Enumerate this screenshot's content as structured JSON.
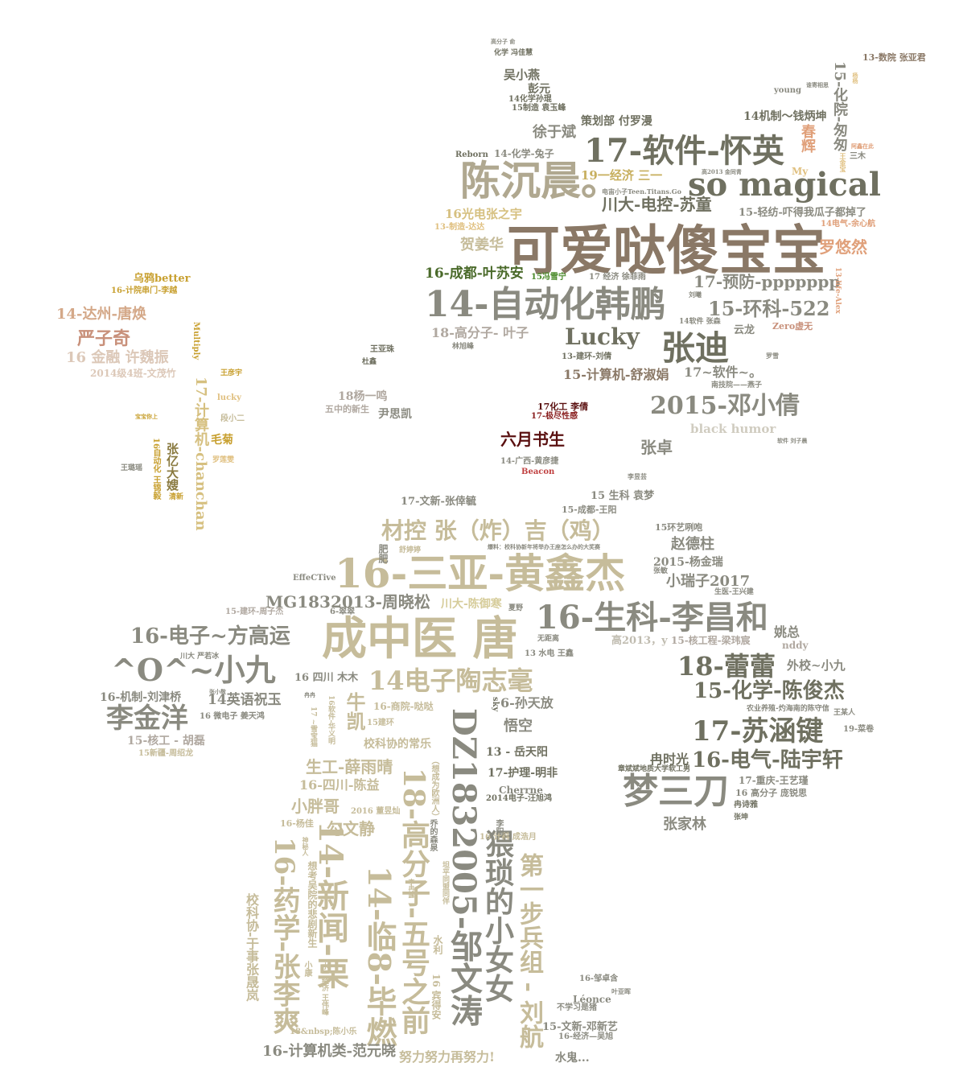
{
  "title": "",
  "colors": {
    "background": "#ffffff",
    "dark_olive": "#6f7060",
    "khaki": "#c6bc9a",
    "brown": "#8a7866",
    "salmon": "#e0a07a",
    "gold": "#c8a030",
    "dark_red": "#5a1010",
    "green": "#4a6a2a"
  },
  "words": [
    {
      "text": "可爱哒傻宝宝",
      "color": "#8a7866"
    },
    {
      "text": "17-软件-怀英",
      "color": "#6f7060"
    },
    {
      "text": "陈沉晨。",
      "color": "#b0a890"
    },
    {
      "text": "so magical",
      "color": "#6f7060"
    },
    {
      "text": "14-自动化韩鹏",
      "color": "#8a8a80"
    },
    {
      "text": "张迪",
      "color": "#6f7060"
    },
    {
      "text": "Lucky",
      "color": "#6f7060"
    },
    {
      "text": "15-环科-522",
      "color": "#8a8a80"
    },
    {
      "text": "17-预防-ppppppp",
      "color": "#8a8a80"
    },
    {
      "text": "2015-邓小倩",
      "color": "#8a8a80"
    },
    {
      "text": "川大-电控-苏童",
      "color": "#6f7060"
    },
    {
      "text": "罗悠然",
      "color": "#e0a07a"
    },
    {
      "text": "徐于斌",
      "color": "#8a8a80"
    },
    {
      "text": "16-成都-叶苏安",
      "color": "#4a6a2a"
    },
    {
      "text": "16光电张之宇",
      "color": "#d6c080"
    },
    {
      "text": "19一经济 三一",
      "color": "#c8b060"
    },
    {
      "text": "贺姜华",
      "color": "#c6bc9a"
    },
    {
      "text": "18-高分子- 叶子",
      "color": "#b0a8a0"
    },
    {
      "text": "15-计算机-舒淑娟",
      "color": "#8a7866"
    },
    {
      "text": "17~软件~。",
      "color": "#8a8a80"
    },
    {
      "text": "六月书生",
      "color": "#5a1010"
    },
    {
      "text": "张卓",
      "color": "#8a8a80"
    },
    {
      "text": "black humor",
      "color": "#d0ccc0"
    },
    {
      "text": "16-三亚-黄鑫杰",
      "color": "#c6bc9a"
    },
    {
      "text": "成中医 唐",
      "color": "#c6bc9a"
    },
    {
      "text": "16-生科-李昌和",
      "color": "#8a8a80"
    },
    {
      "text": "^O^~小九",
      "color": "#8a8a80"
    },
    {
      "text": "16-电子~方高运",
      "color": "#8a8a80"
    },
    {
      "text": "李金洋",
      "color": "#8a8a80"
    },
    {
      "text": "14电子陶志毫",
      "color": "#c6bc9a"
    },
    {
      "text": "18-蕾蕾",
      "color": "#6f7060"
    },
    {
      "text": "15-化学-陈俊杰",
      "color": "#6f7060"
    },
    {
      "text": "17-苏涵键",
      "color": "#6f7060"
    },
    {
      "text": "16-电气-陆宇轩",
      "color": "#6f7060"
    },
    {
      "text": "梦三刀",
      "color": "#8a8a80"
    },
    {
      "text": "张家林",
      "color": "#8a8a80"
    },
    {
      "text": "材控 张（炸）吉（鸡）",
      "color": "#c6bc9a"
    },
    {
      "text": "MG1832013-周晓松",
      "color": "#8a8a80"
    },
    {
      "text": "DZ1832005-邹文涛",
      "color": "#8a8a80"
    },
    {
      "text": "14-新闻-栗",
      "color": "#c6bc9a"
    },
    {
      "text": "16-药学-张李爽",
      "color": "#c6bc9a"
    },
    {
      "text": "14-临8-毕燃",
      "color": "#c6bc9a"
    },
    {
      "text": "18-高分子-五号之前",
      "color": "#c6bc9a"
    },
    {
      "text": "猥琐的小女女",
      "color": "#8a8a80"
    },
    {
      "text": "第一步兵组 - 刘航",
      "color": "#c6bc9a"
    },
    {
      "text": "16-计算机类-范元晓",
      "color": "#8a8a80"
    },
    {
      "text": "努力努力再努力!",
      "color": "#c6bc9a"
    },
    {
      "text": "14-达州-唐焕",
      "color": "#d4a888"
    },
    {
      "text": "严子奇",
      "color": "#c8907a"
    },
    {
      "text": "16 金融 许魏振",
      "color": "#dcc8b8"
    },
    {
      "text": "17-计算机-chanchan",
      "color": "#d6c080"
    },
    {
      "text": "乌鸦better",
      "color": "#c8a030"
    },
    {
      "text": "张亿大嫂",
      "color": "#8a7a40"
    },
    {
      "text": "毛菊",
      "color": "#c8a030"
    },
    {
      "text": "17-文新-张倖毓",
      "color": "#8a8a80"
    },
    {
      "text": "赵德柱",
      "color": "#8a8a80"
    },
    {
      "text": "小瑞子2017",
      "color": "#8a8a80"
    },
    {
      "text": "2015-杨金瑞",
      "color": "#8a8a80"
    },
    {
      "text": "姚总",
      "color": "#8a8a80"
    },
    {
      "text": "外校~小九",
      "color": "#8a8a80"
    },
    {
      "text": "14英语祝玉",
      "color": "#8a8a80"
    },
    {
      "text": "牛凯",
      "color": "#c6bc9a"
    },
    {
      "text": "悟空",
      "color": "#8a8a80"
    },
    {
      "text": "6-孙天放",
      "color": "#8a8a80"
    },
    {
      "text": "生工-薛雨晴",
      "color": "#c6bc9a"
    },
    {
      "text": "小胖哥",
      "color": "#c6bc9a"
    },
    {
      "text": "勾文静",
      "color": "#c6bc9a"
    },
    {
      "text": "16-四川-陈益",
      "color": "#c6bc9a"
    },
    {
      "text": "13 - 岳天阳",
      "color": "#6f7060"
    },
    {
      "text": "17-护理-明非",
      "color": "#6f7060"
    },
    {
      "text": "冉时光",
      "color": "#6f7060"
    },
    {
      "text": "吴小燕",
      "color": "#6f7060"
    },
    {
      "text": "彭元",
      "color": "#6f7060"
    },
    {
      "text": "策划部 付罗漫",
      "color": "#6f7060"
    },
    {
      "text": "14机制～钱炳坤",
      "color": "#6f7060"
    },
    {
      "text": "15-化院-匆匆",
      "color": "#8a8a80"
    },
    {
      "text": "春辉",
      "color": "#e0a07a"
    },
    {
      "text": "15-轻纺-吓得我瓜子都掉了",
      "color": "#8a8a80"
    },
    {
      "text": "13-数院 张亚君",
      "color": "#8a7866"
    },
    {
      "text": "水鬼...",
      "color": "#8a8a80"
    },
    {
      "text": "15-文新-邓新艺",
      "color": "#8a8a80"
    },
    {
      "text": "校科协-于事张晟岚",
      "color": "#c6bc9a"
    },
    {
      "text": "校科协的常乐",
      "color": "#c6bc9a"
    },
    {
      "text": "16-机制-刘津桥",
      "color": "#8a8a80"
    },
    {
      "text": "15-核工 - 胡磊",
      "color": "#b0a8a0"
    },
    {
      "text": "16 四川 木木",
      "color": "#8a8a80"
    },
    {
      "text": "川大-陈御寒",
      "color": "#d6cc9a"
    },
    {
      "text": "15-核工程-梁玮宸",
      "color": "#b0a8a0"
    },
    {
      "text": "nddy",
      "color": "#b0a8a0"
    },
    {
      "text": "高2013，y",
      "color": "#c0bcb0"
    },
    {
      "text": "15 生科 袁梦",
      "color": "#8a8a80"
    },
    {
      "text": "15-成都-王阳",
      "color": "#8a8a80"
    },
    {
      "text": "15环艺咧咆",
      "color": "#8a8a80"
    },
    {
      "text": "尹思凯",
      "color": "#8a8a80"
    },
    {
      "text": "18杨一鸣",
      "color": "#b0a8a0"
    },
    {
      "text": "五中的新生",
      "color": "#b0a8a0"
    },
    {
      "text": "云龙",
      "color": "#8a8a80"
    },
    {
      "text": "Zero虚无",
      "color": "#c8907a"
    },
    {
      "text": "14电气-余心航",
      "color": "#e0a07a"
    },
    {
      "text": "My",
      "color": "#e0c080"
    },
    {
      "text": "三木",
      "color": "#8a8a80"
    },
    {
      "text": "young",
      "color": "#8a8a80"
    },
    {
      "text": "13-建环-刘倩",
      "color": "#6f7060"
    },
    {
      "text": "17化工 李倩",
      "color": "#5a1010"
    },
    {
      "text": "17-极尽性感",
      "color": "#8a2020"
    },
    {
      "text": "14-广西-黄彦捷",
      "color": "#8a8a80"
    },
    {
      "text": "Beacon",
      "color": "#c04040"
    },
    {
      "text": "李昱芸",
      "color": "#8a8a80"
    },
    {
      "text": "Reborn",
      "color": "#6f7060"
    },
    {
      "text": "14-化学-兔子",
      "color": "#8a8a80"
    },
    {
      "text": "15制造 袁玉峰",
      "color": "#6f7060"
    },
    {
      "text": "14化学孙琨",
      "color": "#6f7060"
    },
    {
      "text": "化学 冯佳慧",
      "color": "#6f7060"
    },
    {
      "text": "15冯雪宁",
      "color": "#4a8a2a"
    },
    {
      "text": "17 经济 徐菲雨",
      "color": "#8a8a80"
    },
    {
      "text": "13-制造-达达",
      "color": "#e0c080"
    },
    {
      "text": "14软件 张森",
      "color": "#8a8a80"
    },
    {
      "text": "南技院——燕子",
      "color": "#8a8a80"
    },
    {
      "text": "王亚珠",
      "color": "#6f7060"
    },
    {
      "text": "杜鑫",
      "color": "#6f7060"
    },
    {
      "text": "林旭峰",
      "color": "#8a8a80"
    },
    {
      "text": "16-计院串门-李越",
      "color": "#c8a030"
    },
    {
      "text": "2014级4班-文茂竹",
      "color": "#dcc8b8"
    },
    {
      "text": "Multiply",
      "color": "#c8a030"
    },
    {
      "text": "王彦宇",
      "color": "#c8a030"
    },
    {
      "text": "lucky",
      "color": "#e0c080"
    },
    {
      "text": "段小二",
      "color": "#c6bc9a"
    },
    {
      "text": "罗莲雯",
      "color": "#e0c080"
    },
    {
      "text": "16自动化 王锦毅",
      "color": "#c8a030"
    },
    {
      "text": "清新",
      "color": "#c8a030"
    },
    {
      "text": "王璐瑶",
      "color": "#8a8a80"
    },
    {
      "text": "EffeCTive",
      "color": "#8a8a80"
    },
    {
      "text": "15-建环-周子杰",
      "color": "#b0a8a0"
    },
    {
      "text": "6-翠翠",
      "color": "#8a8a80"
    },
    {
      "text": "川大 严若冰",
      "color": "#8a8a80"
    },
    {
      "text": "16 微电子 姜天鸿",
      "color": "#8a8a80"
    },
    {
      "text": "15新疆-周绍龙",
      "color": "#c6bc9a"
    },
    {
      "text": "16-商院-哒哒",
      "color": "#c6bc9a"
    },
    {
      "text": "15建环",
      "color": "#c6bc9a"
    },
    {
      "text": "2016 董昱灿",
      "color": "#c6bc9a"
    },
    {
      "text": "16-杨佳",
      "color": "#c6bc9a"
    },
    {
      "text": "16 计科 成浩月",
      "color": "#c6bc9a"
    },
    {
      "text": "2014电子-汪旭鸿",
      "color": "#6f7060"
    },
    {
      "text": "Cherrne",
      "color": "#8a8a80"
    },
    {
      "text": "17-重庆-王艺瑾",
      "color": "#8a8a80"
    },
    {
      "text": "16 高分子 庞锐思",
      "color": "#8a8a80"
    },
    {
      "text": "冉诗雅",
      "color": "#6f7060"
    },
    {
      "text": "张坤",
      "color": "#6f7060"
    },
    {
      "text": "章斌斌地质大学软工男",
      "color": "#6f7060"
    },
    {
      "text": "19-菜卷",
      "color": "#8a8a80"
    },
    {
      "text": "农业养殖-灼海南的陈守信",
      "color": "#8a8a80"
    },
    {
      "text": "王某人",
      "color": "#8a8a80"
    },
    {
      "text": "16-邹卓含",
      "color": "#8a8a80"
    },
    {
      "text": "叶亚晖",
      "color": "#8a8a80"
    },
    {
      "text": "Léonce",
      "color": "#8a8a80"
    },
    {
      "text": "不学习是猪",
      "color": "#8a8a80"
    },
    {
      "text": "16-经济—吴旭",
      "color": "#8a8a80"
    },
    {
      "text": "18&nbsp;陈小乐",
      "color": "#c6bc9a"
    },
    {
      "text": "16 宾得安",
      "color": "#c6bc9a"
    },
    {
      "text": "水利",
      "color": "#c6bc9a"
    },
    {
      "text": "13 水电 王鑫",
      "color": "#8a8a80"
    },
    {
      "text": "无距离",
      "color": "#8a8a80"
    },
    {
      "text": "夏野",
      "color": "#8a8a80"
    },
    {
      "text": "生医-王兴建",
      "color": "#8a8a80"
    },
    {
      "text": "张敏",
      "color": "#8a8a80"
    },
    {
      "text": "肥肥",
      "color": "#8a8a80"
    },
    {
      "text": "舒婷婷",
      "color": "#c6bc9a"
    },
    {
      "text": "李阳",
      "color": "#8a8a80"
    },
    {
      "text": "sky",
      "color": "#6f7060"
    },
    {
      "text": "罗雪",
      "color": "#8a8a80"
    },
    {
      "text": "刘曦",
      "color": "#8a8a80"
    },
    {
      "text": "电宙小子Teen.Titans.Go",
      "color": "#8a8a80"
    },
    {
      "text": "高2013 金同青",
      "color": "#8a8a80"
    },
    {
      "text": "软件 刘子晨",
      "color": "#8a8a80"
    },
    {
      "text": "高分子 俞",
      "color": "#8a8a80"
    },
    {
      "text": "谁寄相思",
      "color": "#8a8a80"
    },
    {
      "text": "王金宝",
      "color": "#e0c080"
    },
    {
      "text": "阿鑫在此",
      "color": "#e0a07a"
    },
    {
      "text": "13-life-Alex",
      "color": "#e0a07a"
    },
    {
      "text": "杨杨",
      "color": "#e0c080"
    },
    {
      "text": "宝宝你上",
      "color": "#c8a030"
    },
    {
      "text": "想考吴院的悲剧新生",
      "color": "#c6bc9a"
    },
    {
      "text": "小康",
      "color": "#c6bc9a"
    },
    {
      "text": "水一经济 王伟峰",
      "color": "#c6bc9a"
    },
    {
      "text": "（想成为欧洲人）",
      "color": "#c6bc9a"
    },
    {
      "text": "乔的森泉",
      "color": "#8a8a80"
    },
    {
      "text": "坦平同盟同伴",
      "color": "#c6bc9a"
    },
    {
      "text": "李冉露",
      "color": "#c6bc9a"
    },
    {
      "text": "16软件-华义明",
      "color": "#c6bc9a"
    },
    {
      "text": "17 ~雪宝猫",
      "color": "#c6bc9a"
    },
    {
      "text": "神秘人",
      "color": "#c6bc9a"
    },
    {
      "text": "张小敬",
      "color": "#8a8a80"
    },
    {
      "text": "冉冉",
      "color": "#8a8a80"
    },
    {
      "text": "爆料：校科协新年将举办王座怎么办的大奖赛",
      "color": "#8a8a80"
    }
  ]
}
